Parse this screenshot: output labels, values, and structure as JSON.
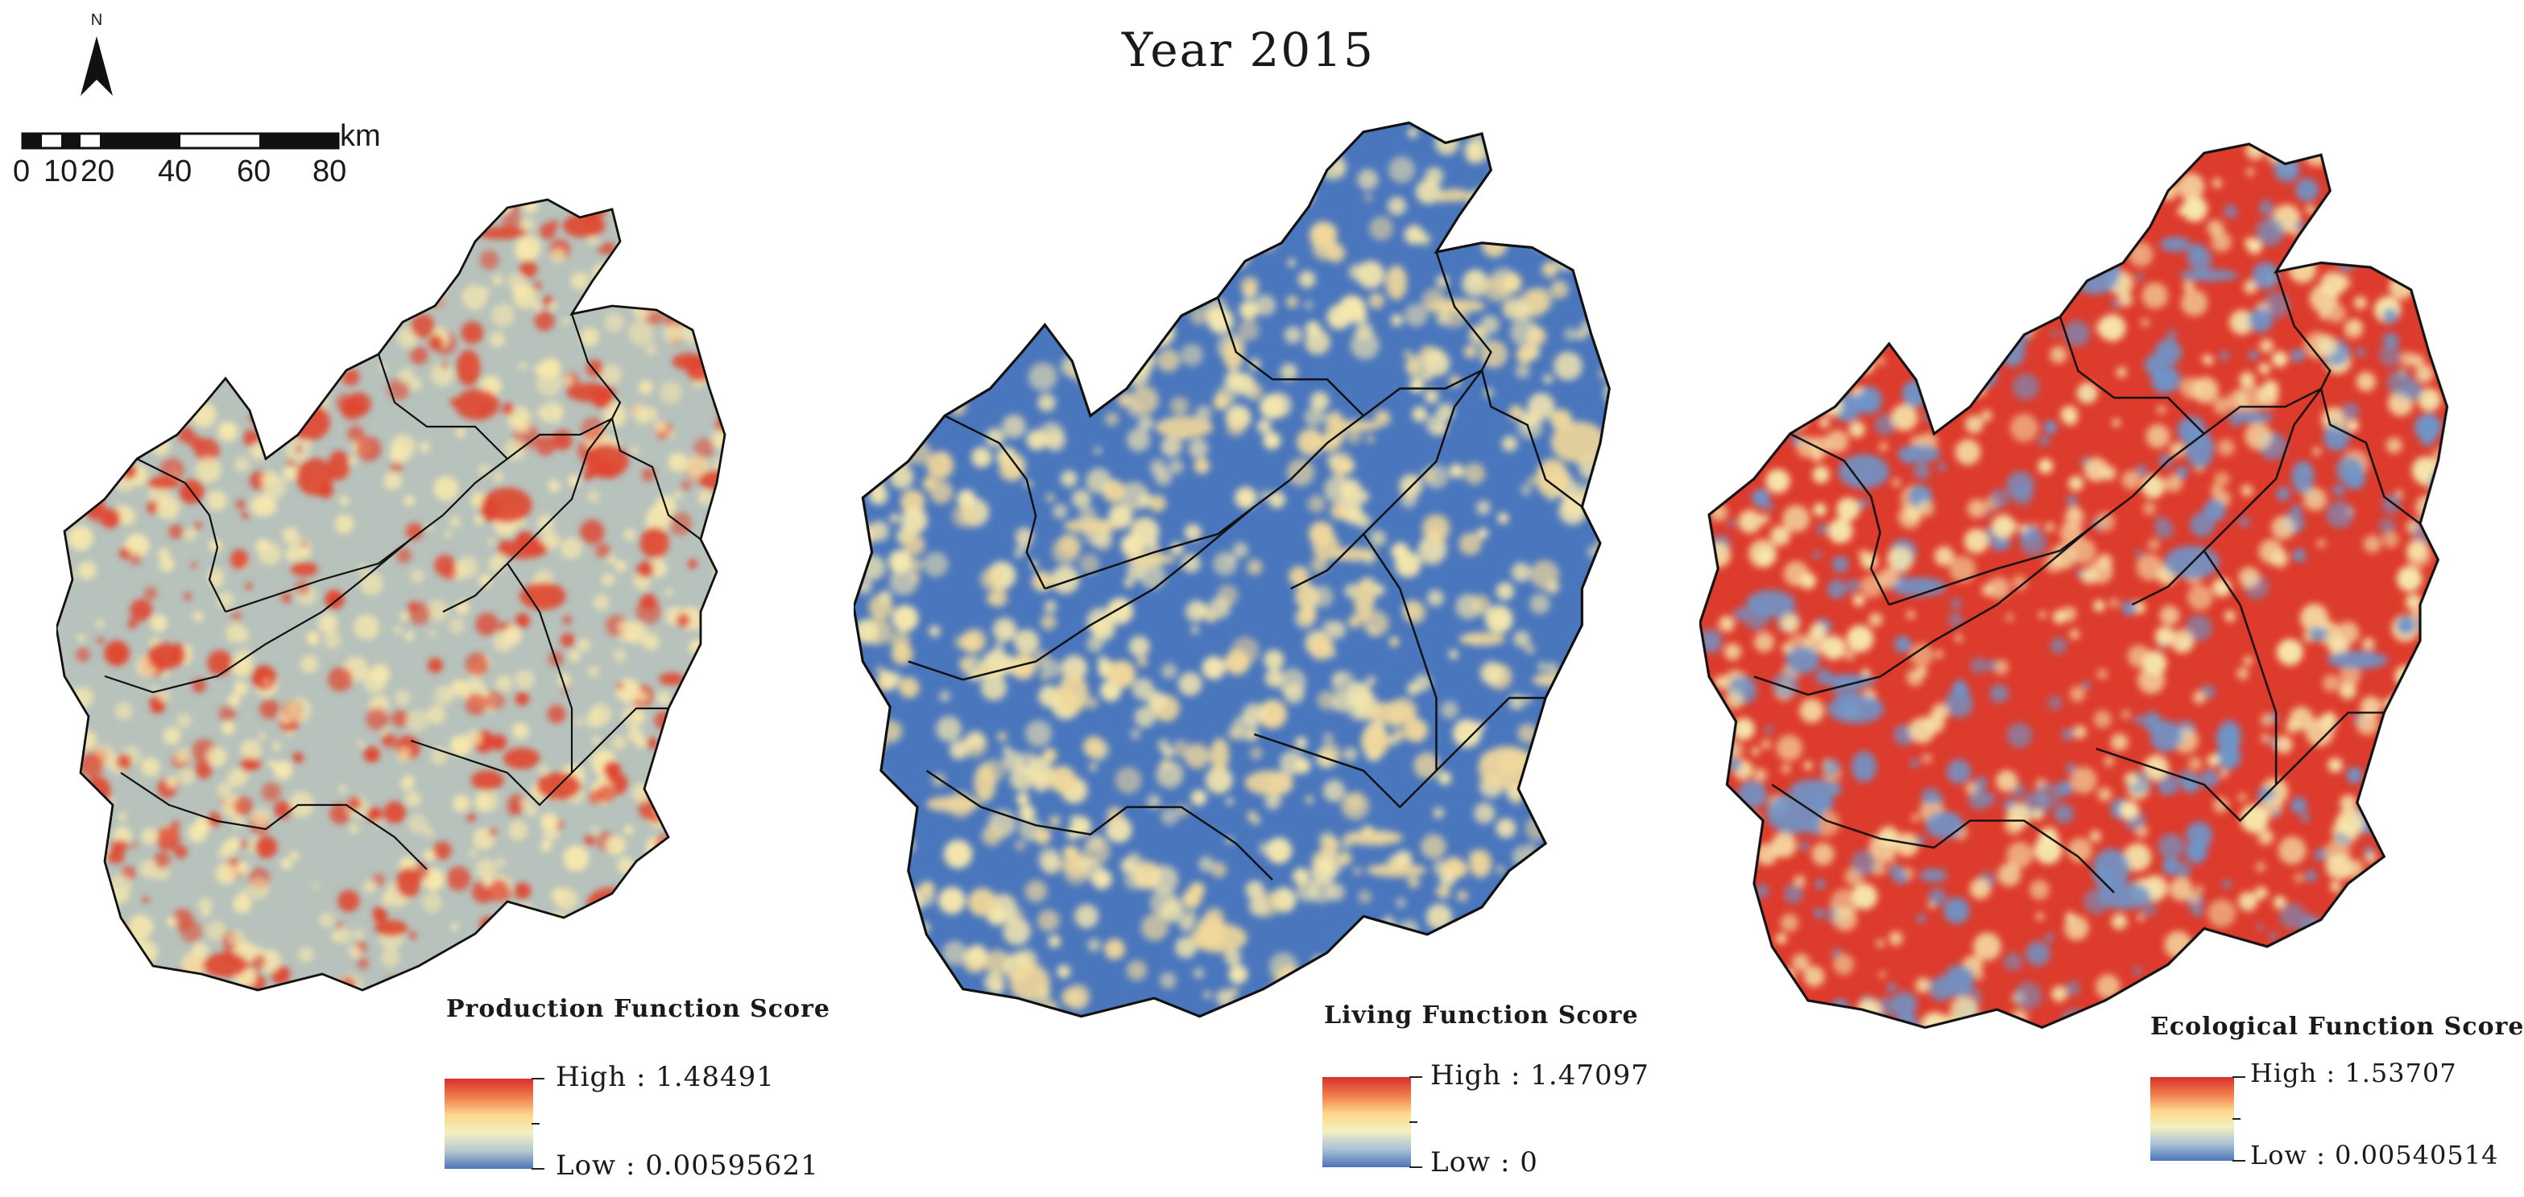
{
  "title": "Year 2015",
  "north_arrow": {
    "label": "N"
  },
  "scale_bar": {
    "unit": "km",
    "ticks": [
      "0",
      "10",
      "20",
      "40",
      "60",
      "80"
    ]
  },
  "panels": [
    {
      "title": "Production Function Score",
      "legend": {
        "high_label": "High",
        "high_value": "1.48491",
        "low_label": "Low",
        "low_value": "0.00595621"
      },
      "ramp": [
        "#d7302a",
        "#f07a4a",
        "#fdd68a",
        "#f4f0c0",
        "#b7c9cf",
        "#4c74b8"
      ],
      "base_color": "#b7c2bc",
      "hot_color": "#e0452f"
    },
    {
      "title": "Living Function Score",
      "legend": {
        "high_label": "High",
        "high_value": "1.47097",
        "low_label": "Low",
        "low_value": "0"
      },
      "ramp": [
        "#d7302a",
        "#f07a4a",
        "#fdd68a",
        "#f4f0c0",
        "#a9c2d6",
        "#4c74b8"
      ],
      "base_color": "#4a76bd",
      "hot_color": "#f2d89a"
    },
    {
      "title": "Ecological Function Score",
      "legend": {
        "high_label": "High",
        "high_value": "1.53707",
        "low_label": "Low",
        "low_value": "0.00540514"
      },
      "ramp": [
        "#d7302a",
        "#f07a4a",
        "#fdd68a",
        "#f4f0c0",
        "#a9c2d6",
        "#4c74b8"
      ],
      "base_color": "#dd3b2c",
      "hot_color": "#6e95c9"
    }
  ]
}
